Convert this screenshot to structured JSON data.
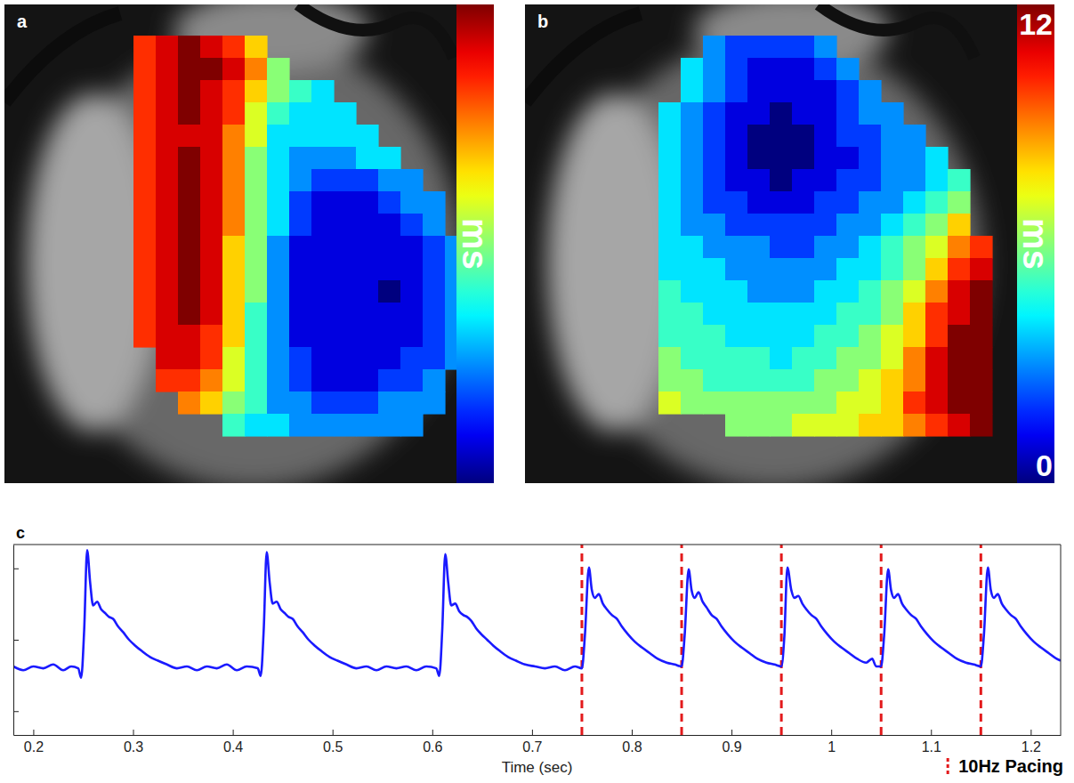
{
  "chart_data": [
    {
      "type": "heatmap",
      "label": "a",
      "colorbar_label": "ms",
      "colorbar_range": [
        0,
        12
      ],
      "tick_labels": false,
      "cells": [
        [
          10,
          11,
          12,
          11,
          10,
          8,
          null,
          null,
          null,
          null,
          null,
          null,
          null,
          null,
          null
        ],
        [
          10,
          11,
          12,
          12,
          11,
          9,
          6,
          null,
          null,
          null,
          null,
          null,
          null,
          null,
          null
        ],
        [
          10,
          11,
          12,
          11,
          10,
          8,
          6,
          5,
          4,
          null,
          null,
          null,
          null,
          null,
          null
        ],
        [
          10,
          11,
          12,
          11,
          10,
          7,
          5,
          4,
          4,
          4,
          null,
          null,
          null,
          null,
          null
        ],
        [
          10,
          11,
          11,
          11,
          9,
          7,
          4,
          4,
          4,
          4,
          4,
          null,
          null,
          null,
          null
        ],
        [
          10,
          11,
          12,
          11,
          9,
          6,
          4,
          3,
          3,
          3,
          4,
          4,
          null,
          null,
          null
        ],
        [
          10,
          11,
          12,
          11,
          9,
          6,
          4,
          3,
          2,
          2,
          2,
          3,
          3,
          null,
          null
        ],
        [
          10,
          11,
          12,
          11,
          9,
          6,
          4,
          2,
          1,
          1,
          1,
          2,
          3,
          3,
          null
        ],
        [
          10,
          11,
          12,
          11,
          9,
          6,
          4,
          2,
          1,
          1,
          1,
          1,
          2,
          3,
          null
        ],
        [
          10,
          11,
          12,
          11,
          8,
          6,
          3,
          1,
          1,
          1,
          1,
          1,
          1,
          2,
          3
        ],
        [
          10,
          11,
          12,
          11,
          8,
          6,
          3,
          1,
          1,
          1,
          1,
          1,
          1,
          2,
          3
        ],
        [
          10,
          11,
          12,
          11,
          8,
          6,
          3,
          1,
          1,
          1,
          1,
          0,
          1,
          2,
          3
        ],
        [
          10,
          11,
          12,
          11,
          8,
          5,
          3,
          1,
          1,
          1,
          1,
          1,
          1,
          2,
          3
        ],
        [
          10,
          11,
          11,
          10,
          8,
          5,
          3,
          1,
          1,
          1,
          1,
          1,
          1,
          2,
          3
        ],
        [
          null,
          11,
          11,
          10,
          7,
          5,
          3,
          2,
          1,
          1,
          1,
          1,
          2,
          2,
          3
        ],
        [
          null,
          10,
          10,
          9,
          7,
          5,
          3,
          2,
          1,
          1,
          1,
          2,
          2,
          3,
          null
        ],
        [
          null,
          null,
          9,
          8,
          6,
          5,
          3,
          3,
          2,
          2,
          2,
          3,
          3,
          3,
          null
        ],
        [
          null,
          null,
          null,
          null,
          5,
          4,
          4,
          3,
          3,
          3,
          3,
          3,
          3,
          null,
          null
        ]
      ]
    },
    {
      "type": "heatmap",
      "label": "b",
      "colorbar_label": "ms",
      "colorbar_range": [
        0,
        12
      ],
      "colorbar_ticks": [
        0,
        12
      ],
      "tick_labels": false,
      "cells": [
        [
          null,
          null,
          3,
          2,
          2,
          2,
          2,
          3,
          null,
          null,
          null,
          null,
          null,
          null,
          null
        ],
        [
          null,
          4,
          3,
          2,
          1,
          1,
          1,
          2,
          3,
          null,
          null,
          null,
          null,
          null,
          null
        ],
        [
          null,
          4,
          3,
          2,
          1,
          1,
          1,
          1,
          2,
          3,
          null,
          null,
          null,
          null,
          null
        ],
        [
          4,
          3,
          2,
          1,
          1,
          0,
          1,
          1,
          2,
          3,
          3,
          null,
          null,
          null,
          null
        ],
        [
          4,
          3,
          2,
          1,
          0,
          0,
          0,
          1,
          2,
          2,
          3,
          3,
          null,
          null,
          null
        ],
        [
          4,
          3,
          2,
          1,
          0,
          0,
          0,
          1,
          1,
          2,
          3,
          3,
          4,
          null,
          null
        ],
        [
          4,
          3,
          2,
          1,
          1,
          0,
          1,
          1,
          2,
          2,
          3,
          3,
          4,
          5,
          null
        ],
        [
          4,
          3,
          2,
          2,
          1,
          1,
          1,
          2,
          2,
          3,
          3,
          4,
          5,
          6,
          null
        ],
        [
          4,
          3,
          3,
          2,
          2,
          2,
          2,
          2,
          3,
          3,
          4,
          5,
          6,
          8,
          null
        ],
        [
          4,
          4,
          3,
          3,
          3,
          2,
          2,
          3,
          3,
          4,
          5,
          6,
          7,
          9,
          10
        ],
        [
          4,
          4,
          4,
          3,
          3,
          3,
          3,
          3,
          4,
          4,
          5,
          6,
          8,
          10,
          11
        ],
        [
          5,
          4,
          4,
          4,
          3,
          3,
          3,
          4,
          4,
          5,
          6,
          7,
          9,
          11,
          12
        ],
        [
          5,
          5,
          4,
          4,
          4,
          4,
          4,
          4,
          5,
          5,
          6,
          8,
          10,
          11,
          12
        ],
        [
          5,
          5,
          5,
          4,
          4,
          4,
          4,
          5,
          5,
          6,
          7,
          8,
          10,
          12,
          12
        ],
        [
          6,
          5,
          5,
          5,
          5,
          4,
          5,
          5,
          6,
          6,
          7,
          9,
          11,
          12,
          12
        ],
        [
          6,
          6,
          5,
          5,
          5,
          5,
          5,
          6,
          6,
          7,
          8,
          9,
          11,
          12,
          12
        ],
        [
          7,
          6,
          6,
          6,
          6,
          6,
          6,
          6,
          7,
          7,
          8,
          10,
          11,
          12,
          12
        ],
        [
          null,
          null,
          null,
          6,
          6,
          6,
          7,
          7,
          7,
          8,
          8,
          9,
          10,
          11,
          12
        ]
      ]
    },
    {
      "type": "line",
      "label": "c",
      "x_label": "Time (sec)",
      "legend": "bottom-right",
      "xlim": [
        0.18,
        1.23
      ],
      "xticks": [
        0.2,
        0.3,
        0.4,
        0.5,
        0.6,
        0.7,
        0.8,
        0.9,
        1,
        1.1,
        1.2
      ],
      "ylim": [
        0,
        1
      ],
      "yticks": [
        0.125,
        0.5,
        0.875
      ],
      "tick_labels": "x",
      "x": [
        0.18,
        0.19,
        0.2,
        0.21,
        0.22,
        0.23,
        0.238,
        0.245,
        0.248,
        0.251,
        0.254,
        0.257,
        0.26,
        0.264,
        0.268,
        0.272,
        0.276,
        0.28,
        0.285,
        0.29,
        0.296,
        0.302,
        0.309,
        0.317,
        0.325,
        0.334,
        0.344,
        0.354,
        0.364,
        0.374,
        0.384,
        0.394,
        0.404,
        0.414,
        0.425,
        0.428,
        0.431,
        0.434,
        0.437,
        0.44,
        0.444,
        0.448,
        0.452,
        0.456,
        0.46,
        0.465,
        0.47,
        0.476,
        0.482,
        0.489,
        0.497,
        0.505,
        0.514,
        0.524,
        0.534,
        0.544,
        0.554,
        0.564,
        0.574,
        0.584,
        0.594,
        0.604,
        0.607,
        0.61,
        0.613,
        0.616,
        0.619,
        0.623,
        0.627,
        0.631,
        0.635,
        0.639,
        0.644,
        0.649,
        0.655,
        0.661,
        0.668,
        0.676,
        0.684,
        0.693,
        0.703,
        0.713,
        0.723,
        0.733,
        0.743,
        0.75,
        0.753,
        0.757,
        0.76,
        0.763,
        0.767,
        0.771,
        0.775,
        0.78,
        0.785,
        0.79,
        0.796,
        0.803,
        0.81,
        0.818,
        0.826,
        0.835,
        0.843,
        0.85,
        0.853,
        0.857,
        0.86,
        0.863,
        0.867,
        0.871,
        0.875,
        0.88,
        0.885,
        0.89,
        0.896,
        0.903,
        0.91,
        0.918,
        0.926,
        0.935,
        0.943,
        0.95,
        0.953,
        0.956,
        0.96,
        0.963,
        0.967,
        0.971,
        0.975,
        0.98,
        0.985,
        0.99,
        0.996,
        1.003,
        1.01,
        1.018,
        1.026,
        1.035,
        1.041,
        1.045,
        1.05,
        1.053,
        1.057,
        1.06,
        1.063,
        1.067,
        1.071,
        1.075,
        1.08,
        1.085,
        1.09,
        1.096,
        1.103,
        1.11,
        1.118,
        1.126,
        1.135,
        1.143,
        1.15,
        1.153,
        1.157,
        1.16,
        1.163,
        1.167,
        1.171,
        1.175,
        1.18,
        1.185,
        1.19,
        1.196,
        1.203,
        1.21,
        1.218,
        1.226,
        1.23
      ],
      "series": [
        {
          "color": "#1a1aff",
          "line_style": "solid",
          "values": [
            0.36,
            0.34,
            0.36,
            0.35,
            0.37,
            0.34,
            0.36,
            0.35,
            0.3,
            0.55,
            0.97,
            0.8,
            0.68,
            0.7,
            0.66,
            0.64,
            0.62,
            0.61,
            0.57,
            0.54,
            0.5,
            0.47,
            0.44,
            0.41,
            0.39,
            0.37,
            0.35,
            0.36,
            0.34,
            0.36,
            0.35,
            0.37,
            0.34,
            0.36,
            0.35,
            0.31,
            0.55,
            0.96,
            0.8,
            0.69,
            0.7,
            0.66,
            0.64,
            0.62,
            0.61,
            0.57,
            0.54,
            0.5,
            0.47,
            0.44,
            0.41,
            0.39,
            0.37,
            0.35,
            0.36,
            0.34,
            0.36,
            0.35,
            0.36,
            0.34,
            0.36,
            0.35,
            0.31,
            0.55,
            0.95,
            0.8,
            0.68,
            0.69,
            0.65,
            0.63,
            0.62,
            0.6,
            0.56,
            0.53,
            0.5,
            0.47,
            0.44,
            0.41,
            0.39,
            0.37,
            0.36,
            0.35,
            0.36,
            0.34,
            0.36,
            0.35,
            0.52,
            0.88,
            0.76,
            0.72,
            0.74,
            0.69,
            0.66,
            0.63,
            0.61,
            0.57,
            0.53,
            0.49,
            0.46,
            0.43,
            0.4,
            0.38,
            0.37,
            0.36,
            0.52,
            0.87,
            0.76,
            0.72,
            0.75,
            0.7,
            0.67,
            0.63,
            0.61,
            0.57,
            0.53,
            0.49,
            0.46,
            0.43,
            0.4,
            0.38,
            0.37,
            0.36,
            0.52,
            0.88,
            0.76,
            0.72,
            0.73,
            0.69,
            0.66,
            0.63,
            0.61,
            0.57,
            0.53,
            0.49,
            0.46,
            0.43,
            0.4,
            0.38,
            0.4,
            0.36,
            0.36,
            0.52,
            0.87,
            0.76,
            0.72,
            0.74,
            0.69,
            0.66,
            0.63,
            0.61,
            0.57,
            0.53,
            0.49,
            0.46,
            0.43,
            0.4,
            0.38,
            0.37,
            0.36,
            0.52,
            0.88,
            0.76,
            0.72,
            0.74,
            0.69,
            0.66,
            0.63,
            0.61,
            0.57,
            0.53,
            0.49,
            0.46,
            0.43,
            0.4,
            0.39
          ]
        },
        {
          "name": "10Hz Pacing",
          "type": "vline",
          "color": "#e31a1c",
          "line_style": "dashed",
          "x": [
            0.75,
            0.85,
            0.95,
            1.05,
            1.15
          ]
        }
      ]
    }
  ]
}
